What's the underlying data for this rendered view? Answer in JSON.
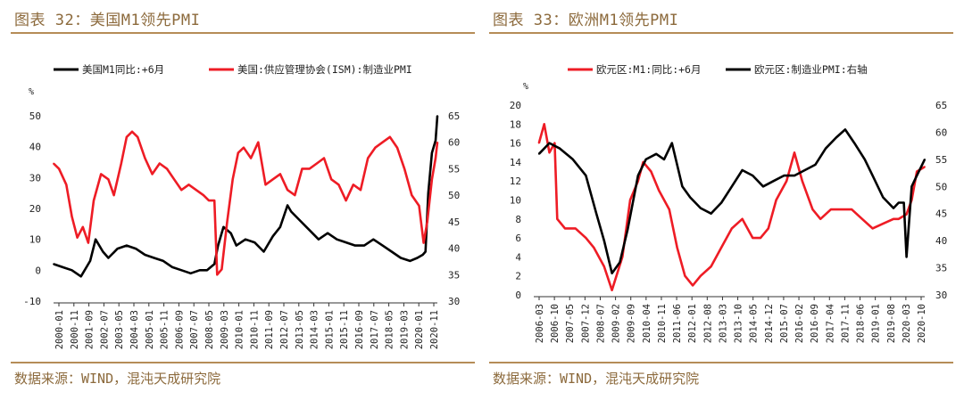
{
  "colors": {
    "red": "#ee1c25",
    "black": "#000000",
    "accent": "#b58c57",
    "title": "#8c6a3c"
  },
  "charts": [
    {
      "title": "图表 32：美国M1领先PMI",
      "source": "数据来源：WIND，混沌天成研究院",
      "chart_data": {
        "type": "line",
        "legend": [
          "美国M1同比:+6月",
          "美国:供应管理协会(ISM):制造业PMI"
        ],
        "legend_position": "top",
        "unit_label": "%",
        "ylim_left": [
          -10,
          50
        ],
        "ylim_right": [
          30,
          65
        ],
        "yticks_left": [
          "-10",
          "0",
          "10",
          "20",
          "30",
          "40",
          "50"
        ],
        "yticks_right": [
          "30",
          "35",
          "40",
          "45",
          "50",
          "55",
          "60",
          "65"
        ],
        "xticks": [
          "2000-01",
          "2000-11",
          "2001-09",
          "2002-07",
          "2003-05",
          "2004-03",
          "2005-01",
          "2005-11",
          "2006-09",
          "2007-07",
          "2008-05",
          "2009-03",
          "2010-01",
          "2010-11",
          "2011-09",
          "2012-07",
          "2013-05",
          "2014-03",
          "2015-01",
          "2015-11",
          "2016-09",
          "2017-07",
          "2018-05",
          "2019-03",
          "2020-01",
          "2020-11"
        ],
        "x_start": 2000.0,
        "x_end": 2021.0,
        "series": [
          {
            "name": "美国M1同比:+6月",
            "color": "black",
            "axis": "left",
            "x": [
              2000.0,
              2000.5,
              2001.0,
              2001.5,
              2002.0,
              2002.3,
              2002.7,
              2003.0,
              2003.5,
              2004.0,
              2004.5,
              2005.0,
              2005.5,
              2006.0,
              2006.5,
              2007.0,
              2007.5,
              2008.0,
              2008.4,
              2008.8,
              2009.0,
              2009.3,
              2009.7,
              2010.0,
              2010.5,
              2011.0,
              2011.5,
              2012.0,
              2012.4,
              2012.8,
              2013.0,
              2013.5,
              2014.0,
              2014.5,
              2015.0,
              2015.5,
              2016.0,
              2016.5,
              2017.0,
              2017.5,
              2018.0,
              2018.5,
              2019.0,
              2019.5,
              2019.9,
              2020.2,
              2020.35,
              2020.5,
              2020.7,
              2020.9,
              2021.0
            ],
            "y": [
              2,
              1,
              0,
              -2,
              3,
              10,
              6,
              4,
              7,
              8,
              7,
              5,
              4,
              3,
              1,
              0,
              -1,
              0,
              0,
              2,
              8,
              14,
              12,
              8,
              10,
              9,
              6,
              11,
              14,
              21,
              19,
              16,
              13,
              10,
              12,
              10,
              9,
              8,
              8,
              10,
              8,
              6,
              4,
              3,
              4,
              5,
              6,
              25,
              38,
              42,
              50
            ]
          },
          {
            "name": "美国:供应管理协会(ISM):制造业PMI",
            "color": "red",
            "axis": "right",
            "x": [
              2000.0,
              2000.3,
              2000.7,
              2001.0,
              2001.3,
              2001.6,
              2001.9,
              2002.2,
              2002.6,
              2003.0,
              2003.3,
              2003.7,
              2004.0,
              2004.3,
              2004.6,
              2005.0,
              2005.4,
              2005.8,
              2006.2,
              2006.6,
              2007.0,
              2007.4,
              2007.8,
              2008.2,
              2008.5,
              2008.8,
              2008.95,
              2009.2,
              2009.5,
              2009.8,
              2010.1,
              2010.4,
              2010.8,
              2011.2,
              2011.6,
              2012.0,
              2012.4,
              2012.8,
              2013.2,
              2013.6,
              2014.0,
              2014.4,
              2014.8,
              2015.2,
              2015.6,
              2016.0,
              2016.4,
              2016.8,
              2017.2,
              2017.6,
              2018.0,
              2018.4,
              2018.8,
              2019.2,
              2019.6,
              2020.0,
              2020.25,
              2020.45,
              2020.7,
              2020.9,
              2021.0
            ],
            "y": [
              56,
              55,
              52,
              46,
              42,
              44,
              41,
              49,
              54,
              53,
              50,
              56,
              61,
              62,
              61,
              57,
              54,
              56,
              55,
              53,
              51,
              52,
              51,
              50,
              49,
              49,
              35,
              36,
              45,
              53,
              58,
              59,
              57,
              60,
              52,
              53,
              54,
              51,
              50,
              55,
              55,
              56,
              57,
              53,
              52,
              49,
              52,
              51,
              57,
              59,
              60,
              61,
              59,
              55,
              50,
              48,
              41,
              45,
              53,
              57,
              60
            ]
          }
        ]
      }
    },
    {
      "title": "图表 33：欧洲M1领先PMI",
      "source": "数据来源：WIND，混沌天成研究院",
      "chart_data": {
        "type": "line",
        "legend": [
          "欧元区:M1:同比:+6月",
          "欧元区:制造业PMI:右轴"
        ],
        "legend_position": "top",
        "unit_label": "%",
        "ylim_left": [
          0,
          20
        ],
        "ylim_right": [
          30,
          65
        ],
        "yticks_left": [
          "0",
          "2",
          "4",
          "6",
          "8",
          "10",
          "12",
          "14",
          "16",
          "18",
          "20"
        ],
        "yticks_right": [
          "30",
          "35",
          "40",
          "45",
          "50",
          "55",
          "60",
          "65"
        ],
        "xticks": [
          "2006-03",
          "2006-10",
          "2007-05",
          "2007-12",
          "2008-07",
          "2009-02",
          "2009-09",
          "2010-04",
          "2010-11",
          "2011-06",
          "2012-01",
          "2012-08",
          "2013-03",
          "2013-10",
          "2014-05",
          "2014-12",
          "2015-07",
          "2016-02",
          "2016-09",
          "2017-04",
          "2017-11",
          "2018-06",
          "2019-01",
          "2019-08",
          "2020-03",
          "2020-10"
        ],
        "x_start": 2006.0,
        "x_end": 2021.0,
        "series": [
          {
            "name": "欧元区:M1:同比:+6月",
            "color": "red",
            "axis": "left",
            "x": [
              2006.2,
              2006.4,
              2006.6,
              2006.8,
              2006.9,
              2007.2,
              2007.6,
              2008.0,
              2008.3,
              2008.7,
              2009.0,
              2009.4,
              2009.7,
              2010.0,
              2010.2,
              2010.5,
              2010.8,
              2011.2,
              2011.5,
              2011.8,
              2012.1,
              2012.4,
              2012.8,
              2013.2,
              2013.6,
              2014.0,
              2014.4,
              2014.7,
              2015.0,
              2015.3,
              2015.7,
              2016.0,
              2016.3,
              2016.7,
              2017.0,
              2017.4,
              2017.8,
              2018.2,
              2018.6,
              2019.0,
              2019.4,
              2019.8,
              2020.0,
              2020.3,
              2020.5,
              2020.7,
              2021.0
            ],
            "y": [
              16,
              18,
              15,
              16,
              8,
              7,
              7,
              6,
              5,
              3,
              0.5,
              4,
              10,
              12,
              14,
              13,
              11,
              9,
              5,
              2,
              1,
              2,
              3,
              5,
              7,
              8,
              6,
              6,
              7,
              10,
              12,
              15,
              12,
              9,
              8,
              9,
              9,
              9,
              8,
              7,
              7.5,
              8,
              8,
              8.5,
              10,
              13,
              13.5
            ]
          },
          {
            "name": "欧元区:制造业PMI:右轴",
            "color": "black",
            "axis": "right",
            "x": [
              2006.2,
              2006.6,
              2007.0,
              2007.5,
              2008.0,
              2008.4,
              2008.7,
              2009.0,
              2009.3,
              2009.6,
              2010.0,
              2010.3,
              2010.7,
              2011.0,
              2011.3,
              2011.7,
              2012.0,
              2012.4,
              2012.8,
              2013.2,
              2013.6,
              2014.0,
              2014.4,
              2014.8,
              2015.2,
              2015.6,
              2016.0,
              2016.4,
              2016.8,
              2017.2,
              2017.6,
              2017.95,
              2018.3,
              2018.7,
              2019.0,
              2019.4,
              2019.8,
              2020.0,
              2020.2,
              2020.3,
              2020.5,
              2020.7,
              2020.9,
              2021.0
            ],
            "y": [
              56,
              58,
              57,
              55,
              52,
              45,
              40,
              34,
              36,
              42,
              52,
              55,
              56,
              55,
              58,
              50,
              48,
              46,
              45,
              47,
              50,
              53,
              52,
              50,
              51,
              52,
              52,
              53,
              54,
              57,
              59,
              60.5,
              58,
              55,
              52,
              48,
              46,
              47,
              47,
              37,
              50,
              52,
              54,
              55
            ]
          }
        ]
      }
    }
  ]
}
